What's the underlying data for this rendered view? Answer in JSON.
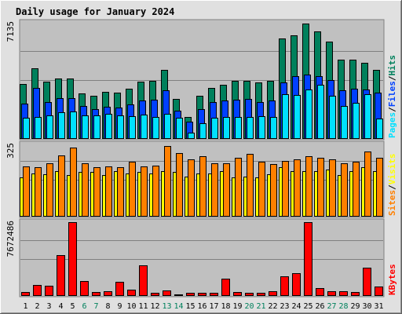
{
  "title": "Daily usage for January 2024",
  "colors": {
    "hits": "#00805c",
    "files": "#0040ff",
    "pages": "#00e0ff",
    "visits": "#ffff00",
    "sites": "#ff8000",
    "kbytes": "#ff0000",
    "weekday_label": "#000000",
    "weekend_label": "#00805c",
    "title": "#0000ff",
    "plot_bg": "#c0c0c0",
    "frame_bg": "#e0e0e0"
  },
  "legend_top": {
    "pages": "Pages",
    "files": "Files",
    "hits": "Hits",
    "sep": "/"
  },
  "legend_mid": {
    "sites": "Sites",
    "visits": "Visits",
    "sep": "/"
  },
  "legend_bot": {
    "kbytes": "KBytes"
  },
  "chart_data": [
    {
      "type": "bar",
      "panel": "hits-files-pages",
      "ymax_label": "7135",
      "ylim": [
        0,
        7135
      ],
      "grid": true,
      "categories": [
        "1",
        "2",
        "3",
        "4",
        "5",
        "6",
        "7",
        "8",
        "9",
        "10",
        "11",
        "12",
        "13",
        "14",
        "15",
        "16",
        "17",
        "18",
        "19",
        "20",
        "21",
        "22",
        "23",
        "24",
        "25",
        "26",
        "27",
        "28",
        "29",
        "30",
        "31"
      ],
      "weekend_days": [
        "6",
        "7",
        "13",
        "14",
        "20",
        "21",
        "27",
        "28"
      ],
      "series": [
        {
          "name": "Hits",
          "values": [
            3350,
            4300,
            3450,
            3650,
            3650,
            2750,
            2600,
            2850,
            2800,
            3050,
            3450,
            3500,
            4180,
            2400,
            1320,
            2600,
            3100,
            3300,
            3500,
            3500,
            3400,
            3500,
            6100,
            6300,
            7030,
            6580,
            5950,
            4800,
            4800,
            4650,
            4200
          ]
        },
        {
          "name": "Files",
          "values": [
            2100,
            3080,
            2200,
            2450,
            2460,
            2000,
            1800,
            1950,
            1900,
            2080,
            2300,
            2350,
            2950,
            1680,
            1020,
            1800,
            2200,
            2300,
            2350,
            2400,
            2200,
            2300,
            3400,
            3800,
            3900,
            3800,
            3550,
            2950,
            3050,
            3000,
            2800
          ]
        },
        {
          "name": "Pages",
          "values": [
            1270,
            1320,
            1400,
            1580,
            1660,
            1420,
            1380,
            1480,
            1400,
            1360,
            1440,
            1320,
            1480,
            1230,
            330,
            900,
            1250,
            1320,
            1300,
            1300,
            1370,
            1300,
            2700,
            2650,
            3000,
            3300,
            2600,
            1970,
            2150,
            2700,
            1200
          ]
        }
      ]
    },
    {
      "type": "bar",
      "panel": "visits-sites",
      "ymax_label": "325",
      "ylim": [
        0,
        325
      ],
      "grid": true,
      "categories": [
        "1",
        "2",
        "3",
        "4",
        "5",
        "6",
        "7",
        "8",
        "9",
        "10",
        "11",
        "12",
        "13",
        "14",
        "15",
        "16",
        "17",
        "18",
        "19",
        "20",
        "21",
        "22",
        "23",
        "24",
        "25",
        "26",
        "27",
        "28",
        "29",
        "30",
        "31"
      ],
      "series": [
        {
          "name": "Visits",
          "values": [
            170,
            190,
            185,
            200,
            180,
            195,
            195,
            180,
            200,
            190,
            195,
            190,
            200,
            195,
            175,
            190,
            190,
            200,
            170,
            175,
            170,
            185,
            215,
            200,
            200,
            200,
            205,
            180,
            200,
            215,
            200
          ]
        },
        {
          "name": "Sites",
          "values": [
            220,
            215,
            235,
            270,
            305,
            235,
            215,
            220,
            215,
            240,
            220,
            225,
            310,
            280,
            250,
            265,
            235,
            235,
            260,
            275,
            240,
            230,
            245,
            250,
            265,
            260,
            250,
            235,
            240,
            285,
            260
          ]
        }
      ]
    },
    {
      "type": "bar",
      "panel": "kbytes",
      "ymax_label": "7672486",
      "ylim": [
        0,
        7672486
      ],
      "grid": true,
      "categories": [
        "1",
        "2",
        "3",
        "4",
        "5",
        "6",
        "7",
        "8",
        "9",
        "10",
        "11",
        "12",
        "13",
        "14",
        "15",
        "16",
        "17",
        "18",
        "19",
        "20",
        "21",
        "22",
        "23",
        "24",
        "25",
        "26",
        "27",
        "28",
        "29",
        "30",
        "31"
      ],
      "series": [
        {
          "name": "KBytes",
          "values": [
            330000,
            1060000,
            960000,
            4200000,
            7650000,
            1460000,
            310000,
            400000,
            1410000,
            580000,
            3140000,
            210000,
            530000,
            110000,
            230000,
            280000,
            250000,
            1730000,
            300000,
            280000,
            230000,
            420000,
            2000000,
            2320000,
            7800000,
            760000,
            390000,
            400000,
            330000,
            2880000,
            880000
          ]
        }
      ]
    }
  ]
}
